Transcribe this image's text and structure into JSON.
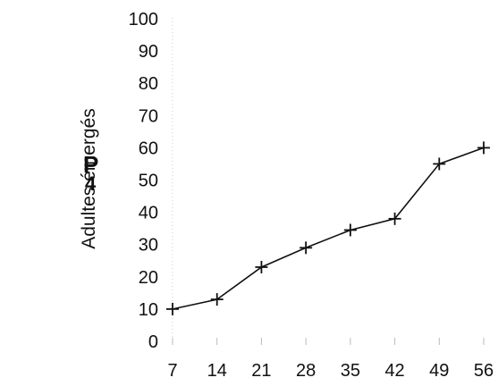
{
  "panel_label": {
    "letter": "P",
    "subscript": "4"
  },
  "chart_data": {
    "type": "line",
    "ylabel": "Adultes émergés",
    "x": [
      7,
      14,
      21,
      28,
      35,
      42,
      49,
      56
    ],
    "y": [
      10,
      13,
      23,
      29,
      34.5,
      38,
      55,
      60
    ],
    "x_ticks": [
      "7",
      "14",
      "21",
      "28",
      "35",
      "42",
      "49",
      "56"
    ],
    "y_ticks": [
      "0",
      "10",
      "20",
      "30",
      "40",
      "50",
      "60",
      "70",
      "80",
      "90",
      "100"
    ],
    "ylim": [
      0,
      100
    ],
    "marker": "plus",
    "grid": false,
    "colors": {
      "line": "#111111",
      "axis": "#aaaaaa"
    }
  }
}
